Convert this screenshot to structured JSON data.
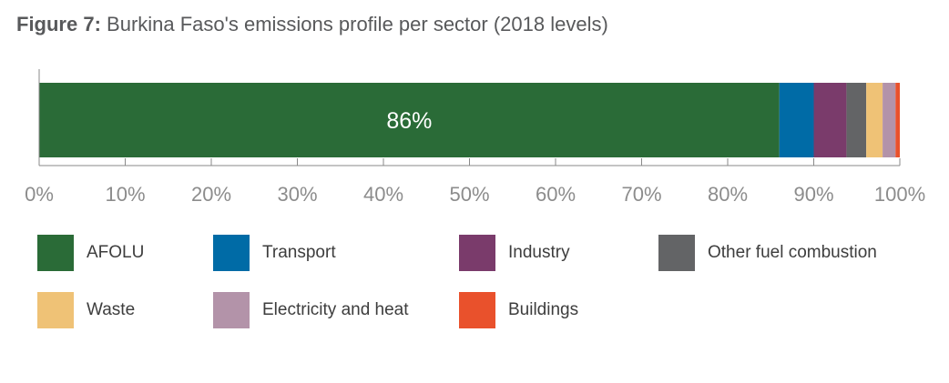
{
  "chart_data": {
    "type": "bar",
    "orientation": "horizontal-stacked-100",
    "title_prefix": "Figure 7:",
    "title": "Burkina Faso's emissions profile per sector (2018 levels)",
    "xlim": [
      0,
      100
    ],
    "x_ticks": [
      "0%",
      "10%",
      "20%",
      "30%",
      "40%",
      "50%",
      "60%",
      "70%",
      "80%",
      "90%",
      "100%"
    ],
    "grid": false,
    "legend_position": "bottom",
    "series": [
      {
        "name": "AFOLU",
        "value": 86,
        "color": "#2a6b37",
        "label": "86%"
      },
      {
        "name": "Transport",
        "value": 4,
        "color": "#006ba6",
        "label": ""
      },
      {
        "name": "Industry",
        "value": 3.8,
        "color": "#7a3b6b",
        "label": ""
      },
      {
        "name": "Other fuel combustion",
        "value": 2.3,
        "color": "#636466",
        "label": ""
      },
      {
        "name": "Waste",
        "value": 1.9,
        "color": "#efc276",
        "label": ""
      },
      {
        "name": "Electricity and heat",
        "value": 1.5,
        "color": "#b393a9",
        "label": ""
      },
      {
        "name": "Buildings",
        "value": 0.5,
        "color": "#e9512c",
        "label": ""
      }
    ]
  }
}
